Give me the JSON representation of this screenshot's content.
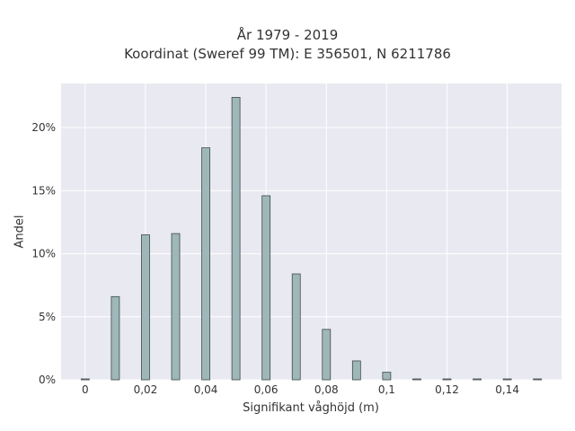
{
  "chart_data": {
    "type": "bar",
    "title": "År 1979 - 2019",
    "subtitle": "Koordinat (Sweref 99 TM): E 356501, N 6211786",
    "xlabel": "Signifikant våghöjd (m)",
    "ylabel": "Andel",
    "x": [
      0,
      0.01,
      0.02,
      0.03,
      0.04,
      0.05,
      0.06,
      0.07,
      0.08,
      0.09,
      0.1,
      0.11,
      0.12,
      0.13,
      0.14,
      0.15
    ],
    "values": [
      0.0,
      6.6,
      11.5,
      11.6,
      18.4,
      22.4,
      14.6,
      8.4,
      4.0,
      1.5,
      0.6,
      0.05,
      0.05,
      0.03,
      0.03,
      0.03
    ],
    "xlim": [
      -0.008,
      0.158
    ],
    "ylim": [
      0,
      23.5
    ],
    "xticks": [
      0,
      0.02,
      0.04,
      0.06,
      0.08,
      0.1,
      0.12,
      0.14
    ],
    "xtick_labels": [
      "0",
      "0,02",
      "0,04",
      "0,06",
      "0,08",
      "0,1",
      "0,12",
      "0,14"
    ],
    "yticks": [
      0,
      5,
      10,
      15,
      20
    ],
    "ytick_labels": [
      "0%",
      "5%",
      "10%",
      "15%",
      "20%"
    ],
    "grid": true,
    "colors": {
      "bar_fill": "#9fb7b8",
      "bar_stroke": "#3e4a4a",
      "plot_bg": "#e9e9f1",
      "grid": "#ffffff"
    }
  }
}
